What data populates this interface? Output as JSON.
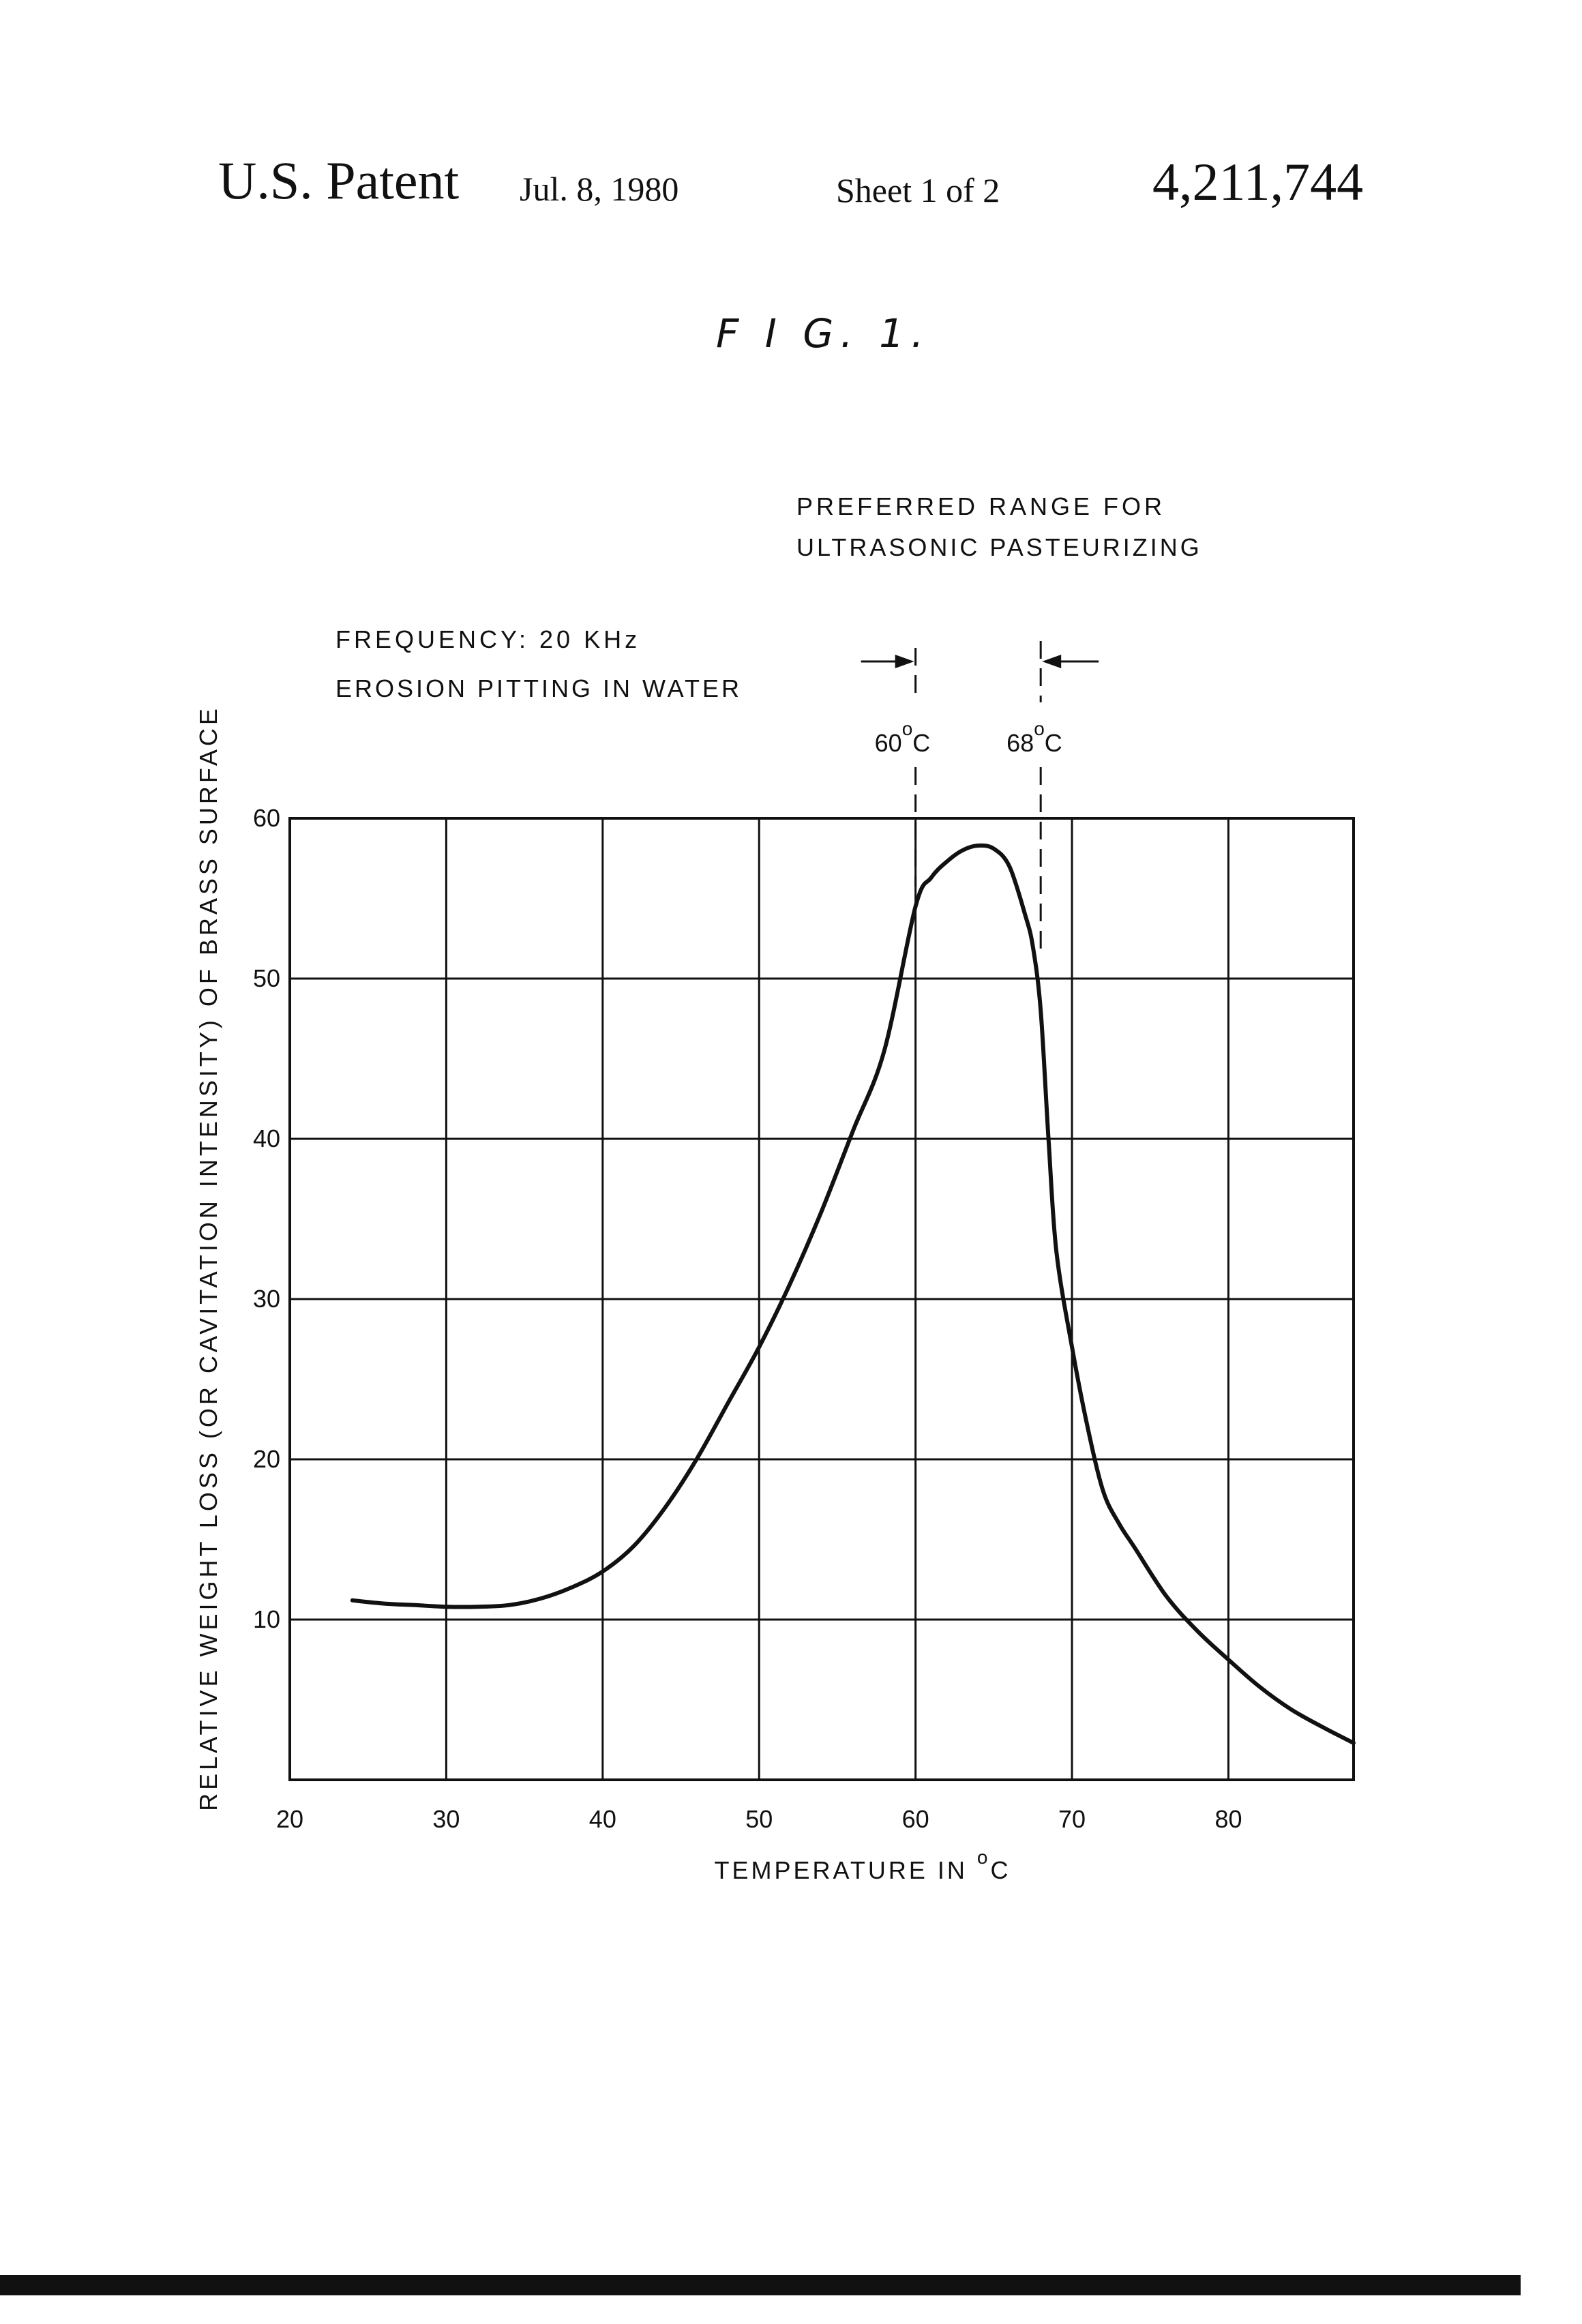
{
  "header": {
    "patent_label": "U.S. Patent",
    "date": "Jul. 8, 1980",
    "sheet": "Sheet 1 of 2",
    "patent_number": "4,211,744"
  },
  "figure": {
    "title": "F I G. 1."
  },
  "colors": {
    "ink": "#111111",
    "paper": "#ffffff"
  },
  "chart_data": {
    "type": "line",
    "title": "",
    "xlabel": "TEMPERATURE IN °C",
    "ylabel": "RELATIVE WEIGHT LOSS (OR CAVITATION INTENSITY) OF BRASS SURFACE",
    "xlim": [
      20,
      88
    ],
    "ylim": [
      0,
      60
    ],
    "grid": true,
    "x_ticks": [
      20,
      30,
      40,
      50,
      60,
      70,
      80
    ],
    "y_ticks": [
      10,
      20,
      30,
      40,
      50,
      60
    ],
    "x_tick_labels": [
      "20",
      "30",
      "40",
      "50",
      "60",
      "70",
      "80"
    ],
    "y_tick_labels": [
      "10",
      "20",
      "30",
      "40",
      "50",
      "60"
    ],
    "annotations": {
      "conditions_line1": "FREQUENCY: 20 KHz",
      "conditions_line2": "EROSION PITTING IN WATER",
      "range_title_line1": "PREFERRED RANGE FOR",
      "range_title_line2": "ULTRASONIC PASTEURIZING",
      "range_low_value": "60",
      "range_high_value": "68",
      "range_unit": "C",
      "degree_mark": "o",
      "range_low": 60,
      "range_high": 68
    },
    "series": [
      {
        "x": [
          24,
          26,
          28,
          30,
          32,
          34,
          36,
          38,
          40,
          42,
          44,
          46,
          48,
          50,
          52,
          54,
          56,
          58,
          60,
          61,
          62,
          63,
          64,
          65,
          66,
          67,
          67.5,
          68,
          68.5,
          69,
          70,
          71,
          72,
          73,
          74,
          76,
          78,
          80,
          82,
          84,
          86,
          88
        ],
        "y": [
          11.2,
          11.0,
          10.9,
          10.8,
          10.8,
          10.9,
          11.3,
          12.0,
          13.0,
          14.6,
          17.0,
          20.0,
          23.5,
          27.0,
          31.0,
          35.5,
          40.5,
          45.5,
          54.5,
          56.3,
          57.3,
          58.0,
          58.3,
          58.1,
          57.0,
          54.0,
          52.0,
          48.0,
          40.0,
          33.0,
          27.0,
          22.0,
          18.0,
          16.0,
          14.5,
          11.5,
          9.3,
          7.5,
          5.8,
          4.4,
          3.3,
          2.3
        ]
      }
    ]
  }
}
